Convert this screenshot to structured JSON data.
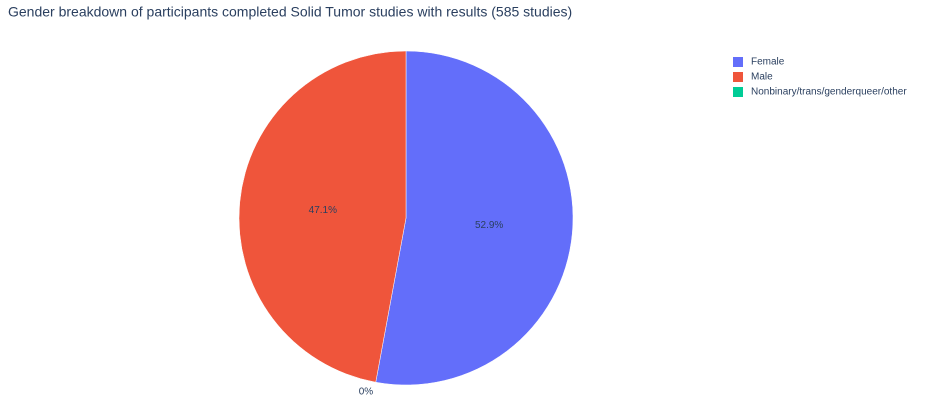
{
  "chart_data": {
    "type": "pie",
    "title": "Gender breakdown of participants completed Solid Tumor studies with results (585 studies)",
    "categories": [
      "Female",
      "Male",
      "Nonbinary/trans/genderqueer/other"
    ],
    "values": [
      52.9,
      47.1,
      0
    ],
    "value_labels": [
      "52.9%",
      "47.1%",
      "0%"
    ],
    "colors": [
      "#636efa",
      "#ef553b",
      "#00cc96"
    ],
    "legend": "top-right"
  }
}
